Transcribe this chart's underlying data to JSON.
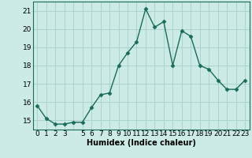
{
  "x": [
    0,
    1,
    2,
    3,
    4,
    5,
    6,
    7,
    8,
    9,
    10,
    11,
    12,
    13,
    14,
    15,
    16,
    17,
    18,
    19,
    20,
    21,
    22,
    23
  ],
  "y": [
    15.8,
    15.1,
    14.8,
    14.8,
    14.9,
    14.9,
    15.7,
    16.4,
    16.5,
    18.0,
    18.7,
    19.3,
    21.1,
    20.1,
    20.4,
    18.0,
    19.9,
    19.6,
    18.0,
    17.8,
    17.2,
    16.7,
    16.7,
    17.2
  ],
  "line_color": "#1a6b5a",
  "marker": "D",
  "marker_size": 2.5,
  "bg_color": "#cceae6",
  "grid_color": "#aad4ce",
  "xlabel": "Humidex (Indice chaleur)",
  "ylim": [
    14.5,
    21.5
  ],
  "xlim": [
    -0.5,
    23.5
  ],
  "yticks": [
    15,
    16,
    17,
    18,
    19,
    20,
    21
  ],
  "xtick_labels": [
    "0",
    "1",
    "2",
    "3",
    "",
    "5",
    "6",
    "7",
    "8",
    "9",
    "10",
    "11",
    "12",
    "13",
    "14",
    "15",
    "16",
    "17",
    "18",
    "19",
    "20",
    "21",
    "22",
    "23"
  ],
  "xlabel_fontsize": 7,
  "tick_fontsize": 6.5,
  "linewidth": 1.0
}
